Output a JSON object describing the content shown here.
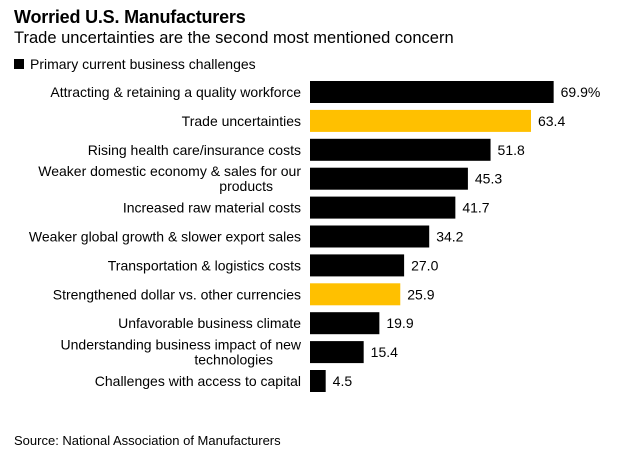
{
  "header": {
    "title": "Worried U.S. Manufacturers",
    "subtitle": "Trade uncertainties are the second most mentioned concern"
  },
  "legend": {
    "label": "Primary current business challenges"
  },
  "source": "Source: National Association of Manufacturers",
  "colors": {
    "default_bar": "#000000",
    "highlight_bar": "#ffc000"
  },
  "chart_data": {
    "type": "bar",
    "orientation": "horizontal",
    "title": "Worried U.S. Manufacturers",
    "subtitle": "Trade uncertainties are the second most mentioned concern",
    "series": [
      {
        "name": "Primary current business challenges",
        "values": [
          69.9,
          63.4,
          51.8,
          45.3,
          41.7,
          34.2,
          27.0,
          25.9,
          19.9,
          15.4,
          4.5
        ]
      }
    ],
    "categories": [
      [
        "Attracting & retaining a quality workforce"
      ],
      [
        "Trade uncertainties"
      ],
      [
        "Rising health care/insurance costs"
      ],
      [
        "Weaker domestic economy & sales for our",
        "products"
      ],
      [
        "Increased raw material costs"
      ],
      [
        "Weaker global growth & slower export sales"
      ],
      [
        "Transportation & logistics costs"
      ],
      [
        "Strengthened dollar vs. other currencies"
      ],
      [
        "Unfavorable business climate"
      ],
      [
        "Understanding business impact of new",
        "technologies"
      ],
      [
        "Challenges with access to capital"
      ]
    ],
    "value_labels": [
      "69.9%",
      "63.4",
      "51.8",
      "45.3",
      "41.7",
      "34.2",
      "27.0",
      "25.9",
      "19.9",
      "15.4",
      "4.5"
    ],
    "highlighted": [
      false,
      true,
      false,
      false,
      false,
      false,
      false,
      true,
      false,
      false,
      false
    ],
    "xlim": [
      0,
      70
    ],
    "grid": false,
    "legend_position": "top-left"
  }
}
